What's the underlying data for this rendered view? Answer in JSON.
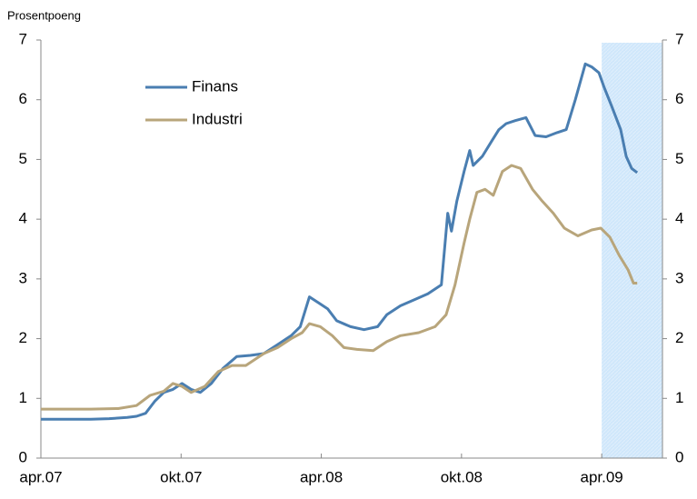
{
  "chart_data": {
    "type": "line",
    "y_label": "Prosentpoeng",
    "xlim": [
      0,
      26.6
    ],
    "xticks": [
      {
        "value": 0,
        "label": "apr.07"
      },
      {
        "value": 6,
        "label": "okt.07"
      },
      {
        "value": 12,
        "label": "apr.08"
      },
      {
        "value": 18,
        "label": "okt.08"
      },
      {
        "value": 24,
        "label": "apr.09"
      }
    ],
    "ylim": [
      0,
      7
    ],
    "yticks": [
      0,
      1,
      2,
      3,
      4,
      5,
      6,
      7
    ],
    "y2lim": [
      0,
      7
    ],
    "y2ticks": [
      0,
      1,
      2,
      3,
      4,
      5,
      6,
      7
    ],
    "shade": [
      24,
      26.6
    ],
    "shade_color": "#cfe7fb",
    "grid": false,
    "legend": "upper left",
    "series": [
      {
        "name": "Finans",
        "color": "#4a7eb1",
        "x": [
          0,
          2.14,
          2.92,
          3.7,
          4.09,
          4.48,
          4.87,
          5.26,
          5.65,
          6.04,
          6.43,
          6.82,
          7.29,
          7.79,
          8.38,
          8.96,
          9.54,
          10.13,
          10.71,
          11.1,
          11.49,
          11.88,
          12.27,
          12.66,
          13.25,
          13.83,
          14.41,
          14.8,
          15.39,
          15.97,
          16.56,
          17.14,
          17.41,
          17.57,
          17.8,
          18.11,
          18.35,
          18.5,
          18.89,
          19.28,
          19.6,
          19.91,
          20.3,
          20.76,
          21.15,
          21.62,
          22.09,
          22.48,
          22.87,
          23.3,
          23.57,
          23.88,
          24.11,
          24.42,
          24.81,
          25.05,
          25.28,
          25.52
        ],
        "values": [
          0.65,
          0.65,
          0.66,
          0.68,
          0.7,
          0.75,
          0.95,
          1.1,
          1.15,
          1.25,
          1.15,
          1.1,
          1.25,
          1.5,
          1.7,
          1.72,
          1.75,
          1.9,
          2.05,
          2.2,
          2.7,
          2.6,
          2.5,
          2.3,
          2.2,
          2.15,
          2.2,
          2.4,
          2.55,
          2.65,
          2.75,
          2.9,
          4.1,
          3.8,
          4.3,
          4.8,
          5.15,
          4.9,
          5.05,
          5.3,
          5.5,
          5.6,
          5.65,
          5.7,
          5.4,
          5.38,
          5.45,
          5.5,
          6.0,
          6.6,
          6.55,
          6.45,
          6.2,
          5.9,
          5.5,
          5.05,
          4.85,
          4.78
        ]
      },
      {
        "name": "Industri",
        "color": "#b8a57b",
        "x": [
          0,
          2.14,
          3.31,
          4.09,
          4.67,
          5.26,
          5.65,
          6.04,
          6.43,
          7.01,
          7.6,
          8.18,
          8.77,
          9.54,
          10.13,
          10.71,
          11.18,
          11.49,
          11.96,
          12.47,
          12.97,
          13.52,
          14.22,
          14.8,
          15.39,
          16.17,
          16.87,
          17.34,
          17.72,
          18.11,
          18.35,
          18.66,
          19.01,
          19.36,
          19.75,
          20.14,
          20.53,
          21.04,
          21.46,
          21.93,
          22.4,
          22.98,
          23.57,
          23.96,
          24.35,
          24.74,
          25.13,
          25.36,
          25.52
        ],
        "values": [
          0.82,
          0.82,
          0.83,
          0.88,
          1.05,
          1.12,
          1.25,
          1.2,
          1.1,
          1.2,
          1.45,
          1.55,
          1.55,
          1.75,
          1.85,
          2.0,
          2.1,
          2.25,
          2.2,
          2.05,
          1.85,
          1.82,
          1.8,
          1.95,
          2.05,
          2.1,
          2.2,
          2.4,
          2.9,
          3.6,
          4.0,
          4.45,
          4.5,
          4.4,
          4.8,
          4.9,
          4.85,
          4.5,
          4.3,
          4.1,
          3.85,
          3.72,
          3.82,
          3.85,
          3.7,
          3.4,
          3.15,
          2.93,
          2.93
        ]
      }
    ]
  }
}
